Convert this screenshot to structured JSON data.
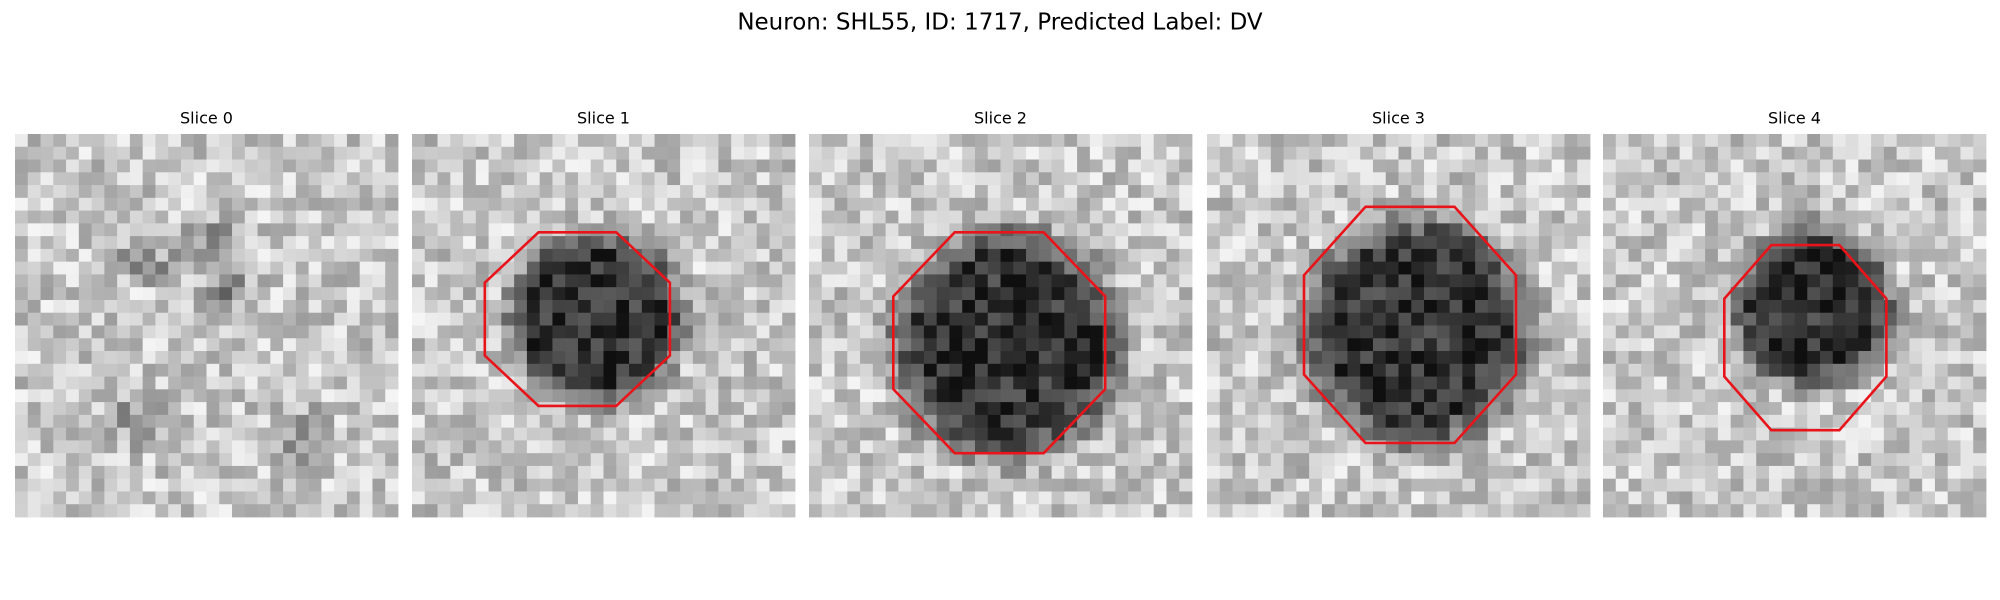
{
  "title": "Neuron: SHL55, ID: 1717, Predicted Label: DV",
  "panels": [
    {
      "title": "Slice 0"
    },
    {
      "title": "Slice 1"
    },
    {
      "title": "Slice 2"
    },
    {
      "title": "Slice 3"
    },
    {
      "title": "Slice 4"
    }
  ]
}
